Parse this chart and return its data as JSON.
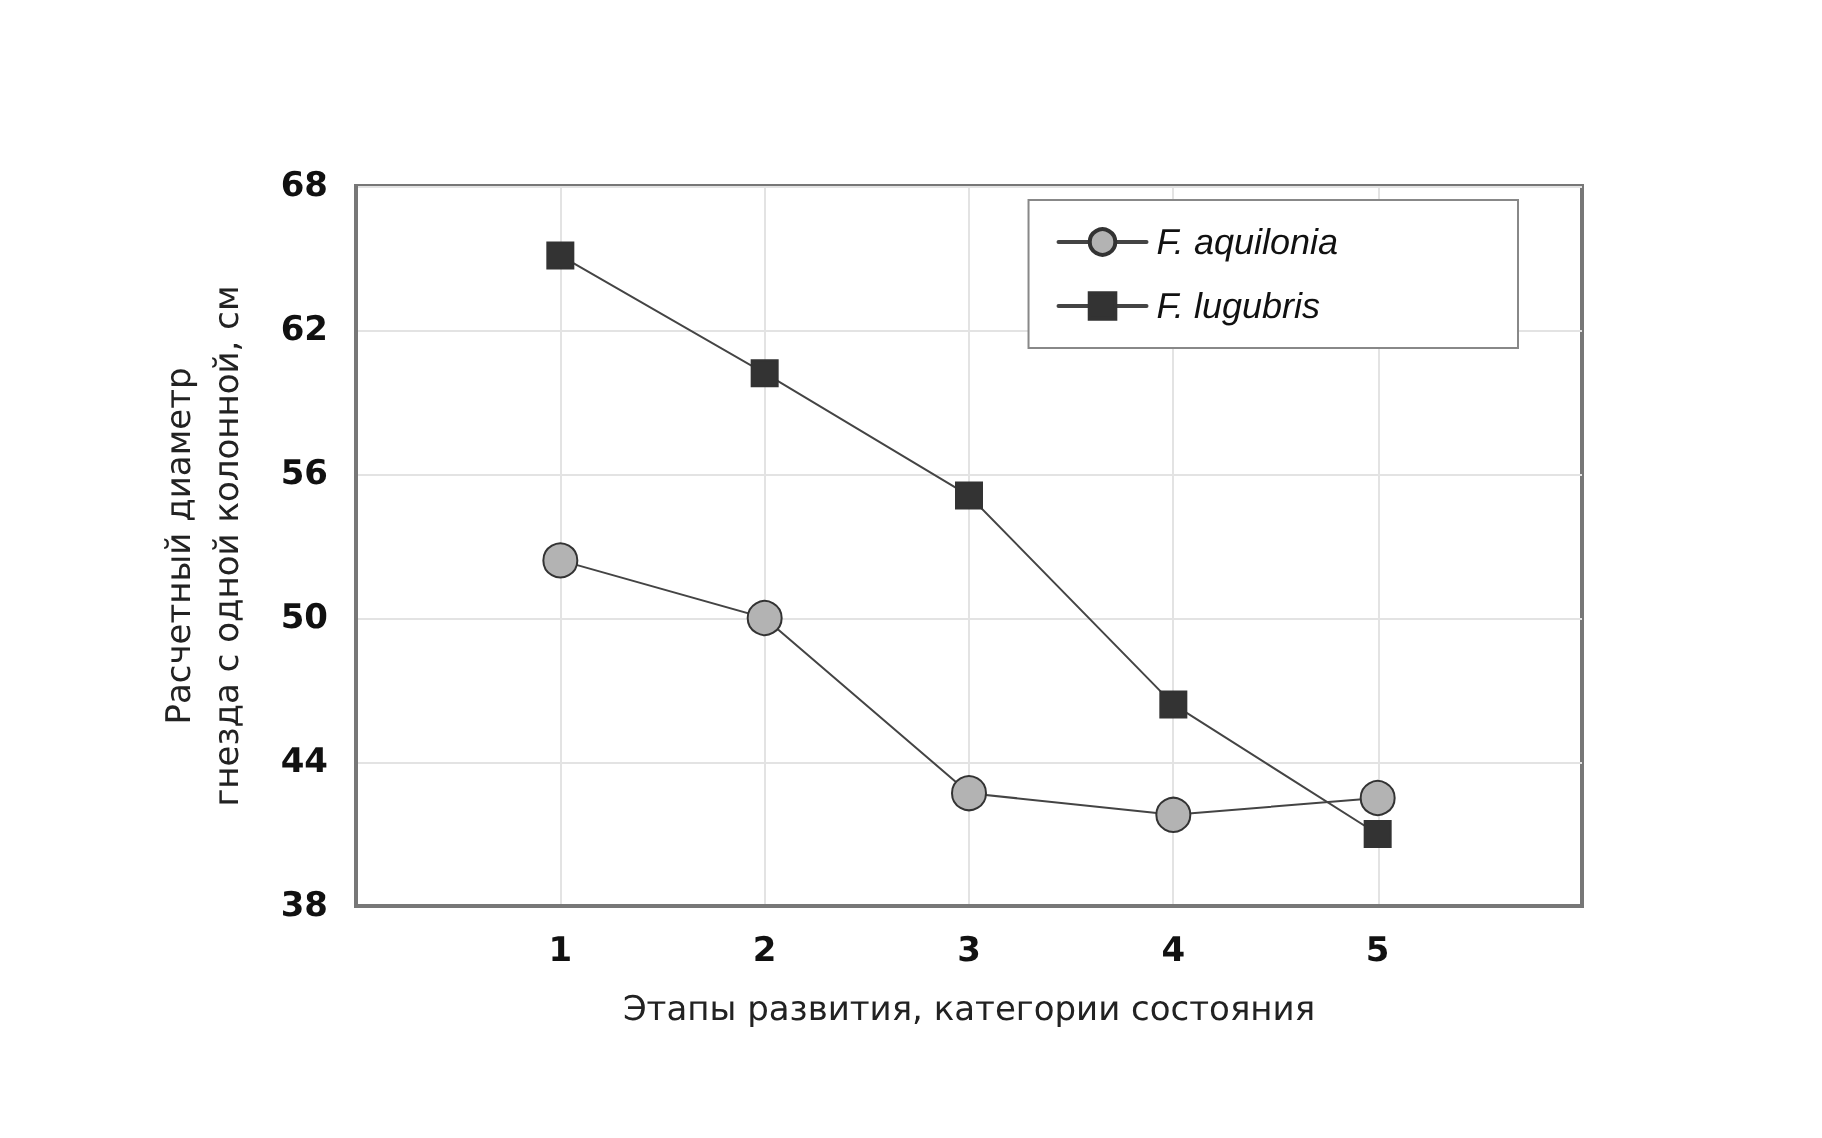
{
  "chart_data": {
    "type": "line",
    "xlabel": "Этапы развития, категории состояния",
    "ylabel": "Расчетный диаметр\nгнезда с одной колонной, см",
    "x": [
      1,
      2,
      3,
      4,
      5
    ],
    "xlim": [
      0,
      6
    ],
    "xticks": [
      1,
      2,
      3,
      4,
      5
    ],
    "ylim": [
      38,
      68
    ],
    "yticks": [
      38,
      44,
      50,
      56,
      62,
      68
    ],
    "grid": true,
    "legend": "top right",
    "series": [
      {
        "name": "F. aquilonia",
        "color": "#b3b3b3",
        "marker": "circle",
        "values": [
          52.4,
          50.0,
          42.7,
          41.8,
          42.5
        ]
      },
      {
        "name": "F. lugubris",
        "color": "#333333",
        "marker": "square",
        "values": [
          65.1,
          60.2,
          55.1,
          46.4,
          41.0
        ]
      }
    ]
  }
}
